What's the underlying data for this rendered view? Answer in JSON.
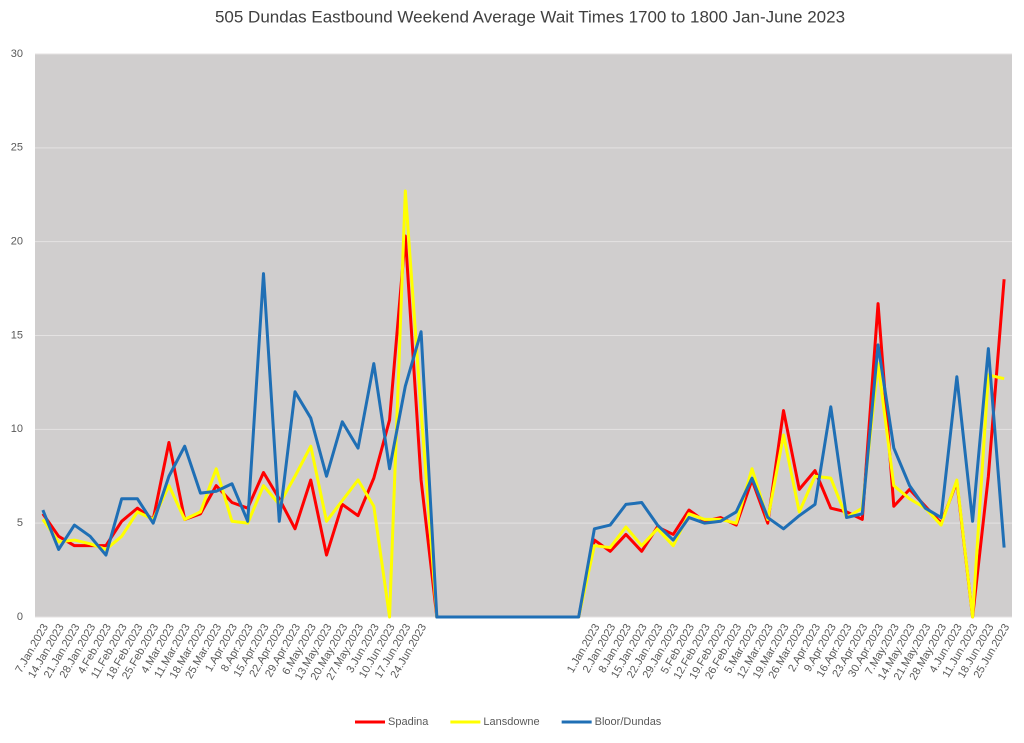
{
  "chart_data": {
    "type": "line",
    "title": "505 Dundas Eastbound Weekend Average Wait Times 1700 to 1800 Jan-June 2023",
    "categories": [
      "7.Jan.2023",
      "14.Jan.2023",
      "21.Jan.2023",
      "28.Jan.2023",
      "4.Feb.2023",
      "11.Feb.2023",
      "18.Feb.2023",
      "25.Feb.2023",
      "4.Mar.2023",
      "11.Mar.2023",
      "18.Mar.2023",
      "25.Mar.2023",
      "1.Apr.2023",
      "8.Apr.2023",
      "15.Apr.2023",
      "22.Apr.2023",
      "29.Apr.2023",
      "6.May.2023",
      "13.May.2023",
      "20.May.2023",
      "27.May.2023",
      "3.Jun.2023",
      "10.Jun.2023",
      "17.Jun.2023",
      "24.Jun.2023",
      null,
      null,
      null,
      null,
      null,
      null,
      null,
      null,
      null,
      null,
      "1.Jan.2023",
      "2.Jan.2023",
      "8.Jan.2023",
      "15.Jan.2023",
      "22.Jan.2023",
      "29.Jan.2023",
      "5.Feb.2023",
      "12.Feb.2023",
      "19.Feb.2023",
      "26.Feb.2023",
      "5.Mar.2023",
      "12.Mar.2023",
      "19.Mar.2023",
      "26.Mar.2023",
      "2.Apr.2023",
      "9.Apr.2023",
      "16.Apr.2023",
      "23.Apr.2023",
      "30.Apr.2023",
      "7.May.2023",
      "14.May.2023",
      "21.May.2023",
      "28.May.2023",
      "4.Jun.2023",
      "11.Jun.2023",
      "18.Jun.2023",
      "25.Jun.2023"
    ],
    "series": [
      {
        "name": "Spadina",
        "color": "#ff0000",
        "values": [
          5.5,
          4.3,
          3.8,
          3.8,
          3.8,
          5.1,
          5.8,
          5.2,
          9.3,
          5.2,
          5.5,
          7.0,
          6.1,
          5.8,
          7.7,
          6.3,
          4.7,
          7.3,
          3.3,
          6.0,
          5.4,
          7.4,
          10.5,
          20.3,
          7.3,
          0,
          0,
          0,
          0,
          0,
          0,
          0,
          0,
          0,
          0,
          4.1,
          3.5,
          4.4,
          3.5,
          4.8,
          4.4,
          5.7,
          5.1,
          5.3,
          4.9,
          7.3,
          5.0,
          11.0,
          6.8,
          7.8,
          5.8,
          5.6,
          5.2,
          16.7,
          5.9,
          6.8,
          5.9,
          5.0,
          7.2,
          0,
          7.5,
          18.0
        ]
      },
      {
        "name": "Lansdowne",
        "color": "#ffff00",
        "values": [
          5.2,
          4.0,
          4.1,
          3.9,
          3.6,
          4.3,
          5.6,
          5.2,
          7.0,
          5.2,
          5.6,
          7.9,
          5.1,
          5.0,
          7.0,
          6.0,
          7.5,
          9.1,
          5.1,
          6.2,
          7.3,
          5.9,
          0,
          22.7,
          11.0,
          0,
          0,
          0,
          0,
          0,
          0,
          0,
          0,
          0,
          0,
          3.8,
          3.7,
          4.8,
          3.8,
          4.7,
          3.8,
          5.5,
          5.2,
          5.2,
          5.0,
          7.9,
          5.2,
          9.7,
          5.6,
          7.5,
          7.4,
          5.3,
          5.8,
          13.5,
          7.0,
          6.3,
          5.8,
          4.9,
          7.3,
          0,
          12.9,
          12.7
        ]
      },
      {
        "name": "Bloor/Dundas",
        "color": "#1f6fb5",
        "values": [
          5.7,
          3.6,
          4.9,
          4.3,
          3.3,
          6.3,
          6.3,
          5.0,
          7.5,
          9.1,
          6.6,
          6.7,
          7.1,
          5.1,
          18.3,
          5.1,
          12.0,
          10.6,
          7.5,
          10.4,
          9.0,
          13.5,
          7.9,
          12.3,
          15.2,
          0,
          0,
          0,
          0,
          0,
          0,
          0,
          0,
          0,
          0,
          4.7,
          4.9,
          6.0,
          6.1,
          4.9,
          4.1,
          5.3,
          5.0,
          5.1,
          5.6,
          7.4,
          5.3,
          4.7,
          5.4,
          6.0,
          11.2,
          5.3,
          5.5,
          14.5,
          9.0,
          7.0,
          5.8,
          5.3,
          12.8,
          5.1,
          14.3,
          3.7
        ]
      }
    ],
    "ylim": [
      0,
      30
    ],
    "yticks": [
      0,
      5,
      10,
      15,
      20,
      25,
      30
    ],
    "grid": true,
    "legend": "bottom"
  }
}
